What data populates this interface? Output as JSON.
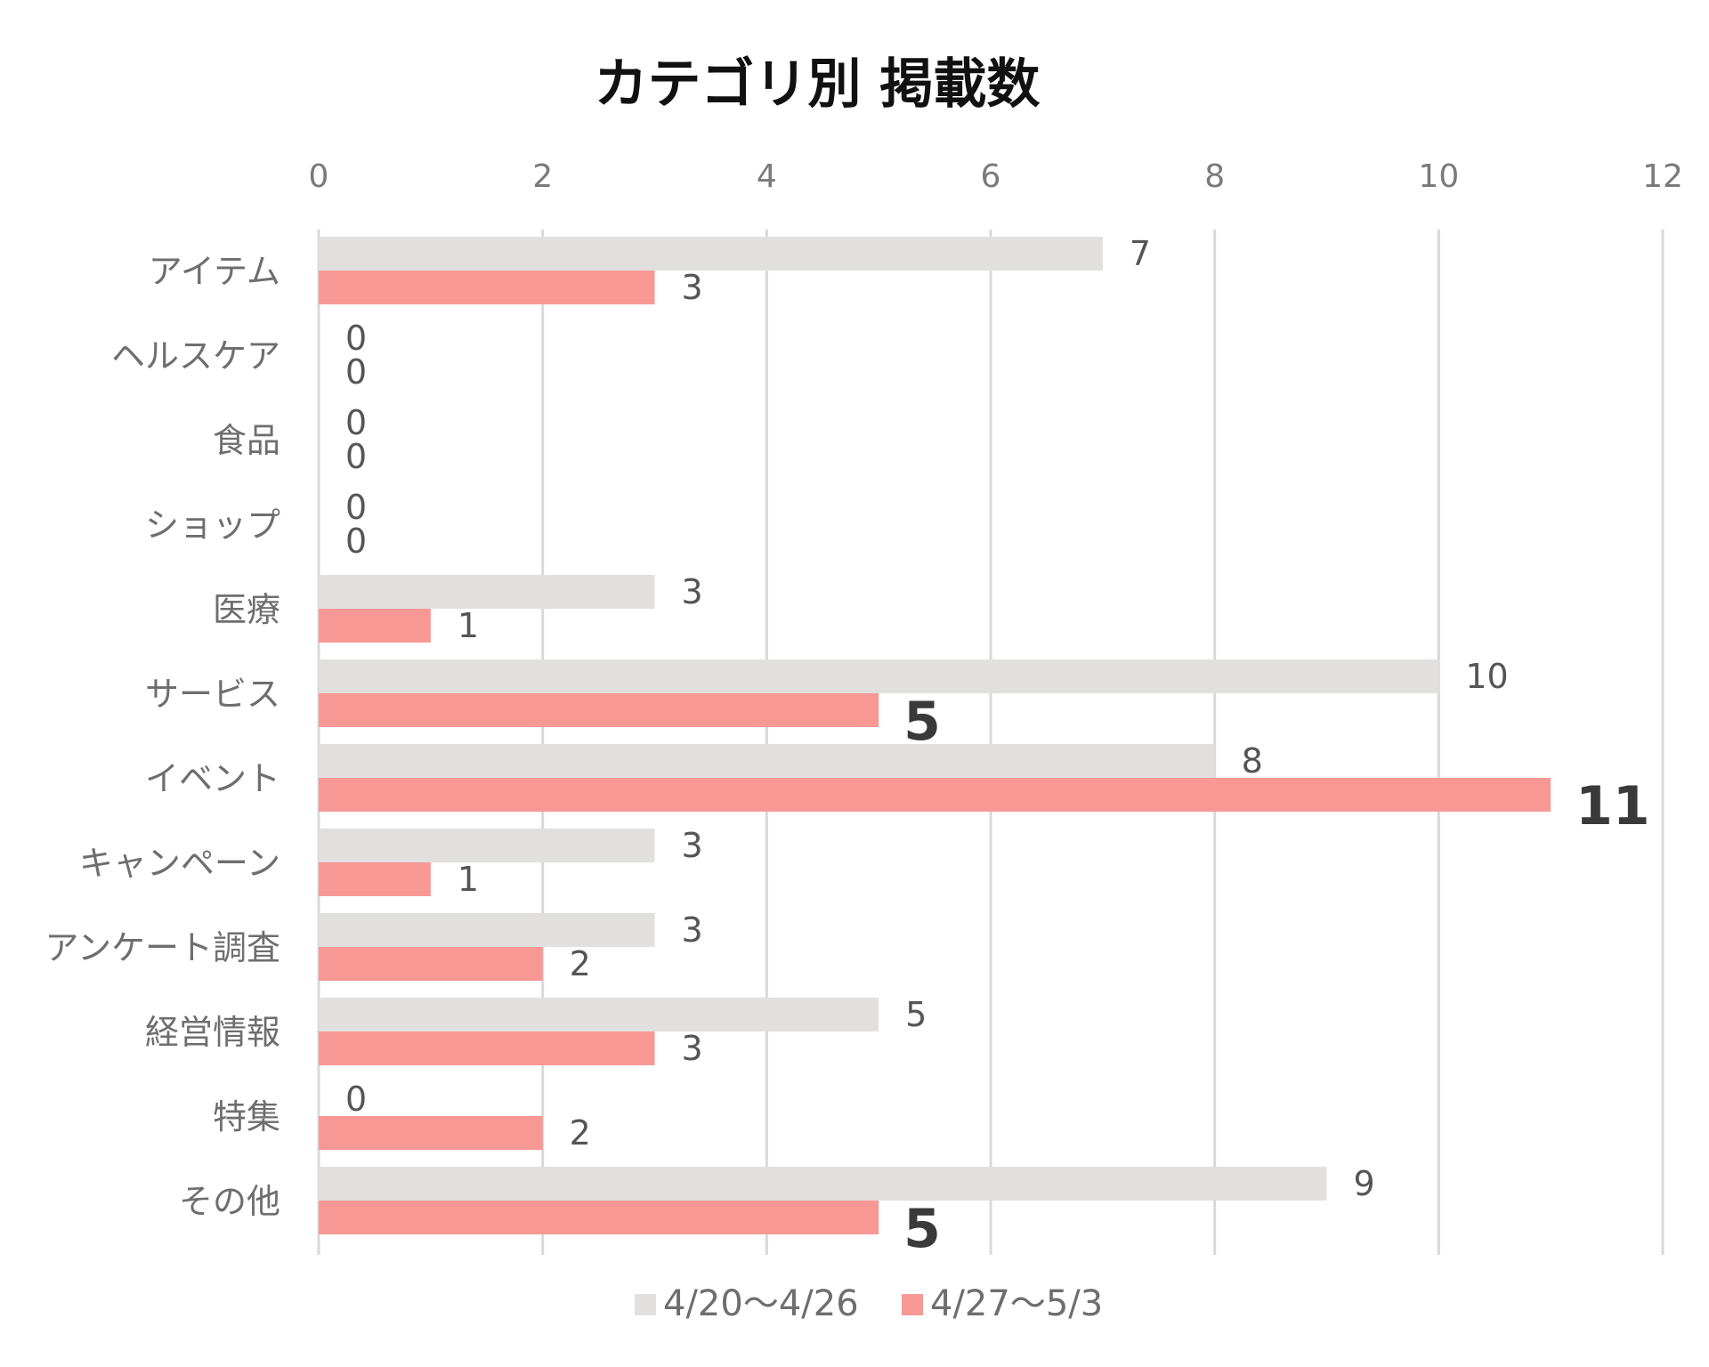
{
  "chart_data": {
    "type": "bar",
    "orientation": "horizontal",
    "title": "カテゴリ別 掲載数",
    "categories": [
      "アイテム",
      "ヘルスケア",
      "食品",
      "ショップ",
      "医療",
      "サービス",
      "イベント",
      "キャンペーン",
      "アンケート調査",
      "経営情報",
      "特集",
      "その他"
    ],
    "series": [
      {
        "name": "4/20〜4/26",
        "color": "#e2dfdf",
        "values": [
          7,
          0,
          0,
          0,
          3,
          10,
          8,
          3,
          3,
          5,
          0,
          9
        ]
      },
      {
        "name": "4/27〜5/3",
        "color": "#f79894",
        "values": [
          3,
          0,
          0,
          0,
          1,
          5,
          11,
          1,
          2,
          3,
          2,
          5
        ]
      }
    ],
    "emphasized_labels": [
      {
        "series": 1,
        "category": "サービス"
      },
      {
        "series": 1,
        "category": "イベント"
      },
      {
        "series": 1,
        "category": "その他"
      }
    ],
    "xlim": [
      0,
      12
    ],
    "xticks": [
      "0",
      "2",
      "4",
      "6",
      "8",
      "10",
      "12"
    ],
    "xaxis_position": "top",
    "grid": true,
    "legend_position": "bottom",
    "xlabel": "",
    "ylabel": ""
  }
}
